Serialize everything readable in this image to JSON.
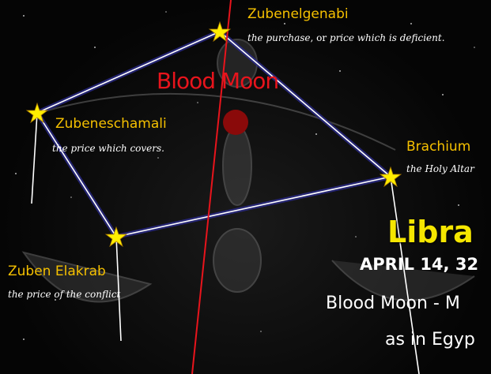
{
  "moon_label": "Blood Moon",
  "stars": [
    {
      "name": "Zubenelgenabi",
      "meaning": [
        "the purchase",
        ", or ",
        "price which is deficient",
        "."
      ]
    },
    {
      "name": "Zubeneschamali",
      "meaning": [
        "the price which covers."
      ]
    },
    {
      "name": "Brachium",
      "meaning": [
        "the Holy Altar"
      ]
    },
    {
      "name": "Zuben Elakrab",
      "meaning": [
        "the price of the conflict"
      ]
    }
  ],
  "event": {
    "title": "Libra",
    "date": "APRIL 14, 32",
    "line1": "Blood Moon - M",
    "line2": "as in Egyp"
  }
}
